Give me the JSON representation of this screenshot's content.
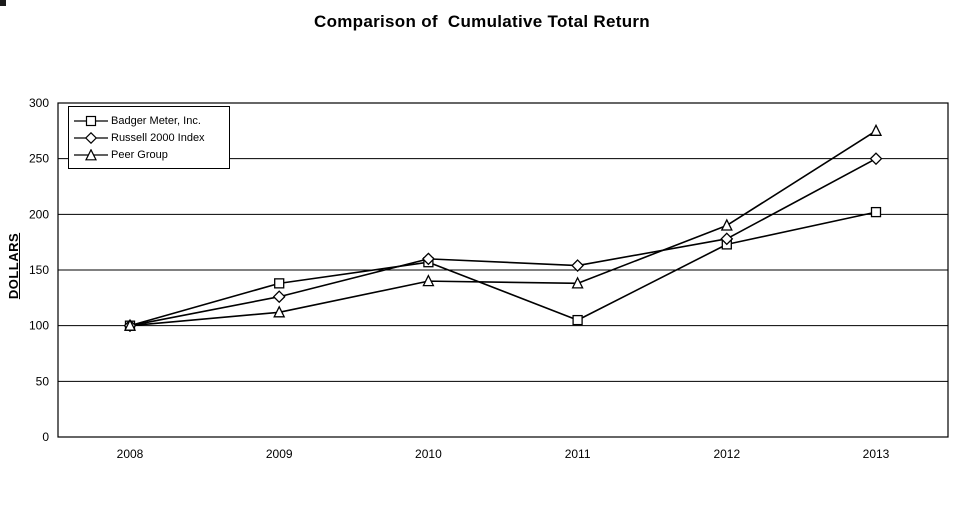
{
  "chart_data": {
    "type": "line",
    "title": "Comparison of  Cumulative Total Return",
    "xlabel": "",
    "ylabel": "DOLLARS",
    "categories": [
      "2008",
      "2009",
      "2010",
      "2011",
      "2012",
      "2013"
    ],
    "ylim": [
      0,
      300
    ],
    "ytick_interval": 50,
    "grid": "horizontal",
    "legend_position": "top-left",
    "line_color": "#000000",
    "marker_fill": "#ffffff",
    "series": [
      {
        "name": "Badger Meter, Inc.",
        "marker": "square",
        "values": [
          100,
          138,
          157,
          105,
          173,
          202
        ]
      },
      {
        "name": "Russell 2000 Index",
        "marker": "diamond",
        "values": [
          100,
          126,
          160,
          154,
          178,
          250
        ]
      },
      {
        "name": "Peer Group",
        "marker": "triangle",
        "values": [
          100,
          112,
          140,
          138,
          190,
          275
        ]
      }
    ]
  }
}
